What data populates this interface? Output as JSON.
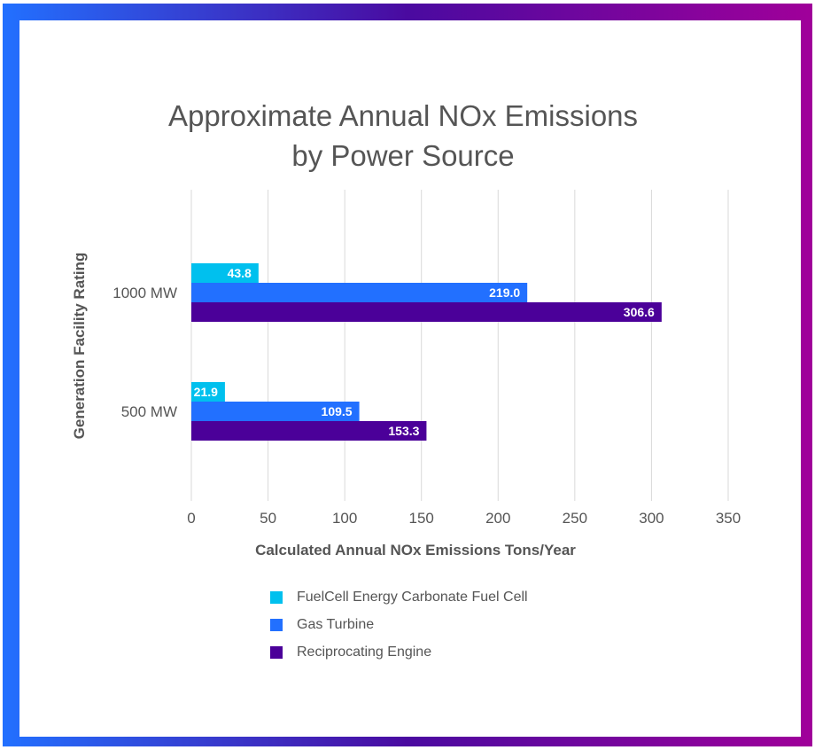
{
  "chart_data": {
    "type": "bar",
    "orientation": "horizontal",
    "title_lines": [
      "Approximate Annual NOx Emissions",
      "by Power Source"
    ],
    "xlabel": "Calculated Annual NOx Emissions Tons/Year",
    "ylabel": "Generation Facility Rating",
    "categories": [
      "1000 MW",
      "500 MW"
    ],
    "xlim": [
      0,
      350
    ],
    "xticks": [
      "0",
      "50",
      "100",
      "150",
      "200",
      "250",
      "300",
      "350"
    ],
    "grid": true,
    "legend_position": "bottom",
    "series": [
      {
        "name": "FuelCell Energy Carbonate Fuel Cell",
        "color": "#00c0ee",
        "values": [
          43.8,
          21.9
        ],
        "labels": [
          "43.8",
          "21.9"
        ]
      },
      {
        "name": "Gas Turbine",
        "color": "#2270ff",
        "values": [
          219.0,
          109.5
        ],
        "labels": [
          "219.0",
          "109.5"
        ]
      },
      {
        "name": "Reciprocating Engine",
        "color": "#4b0099",
        "values": [
          306.6,
          153.3
        ],
        "labels": [
          "306.6",
          "153.3"
        ]
      }
    ]
  },
  "frame_gradient": [
    "#2270ff",
    "#4a0aa0",
    "#a0009a"
  ]
}
